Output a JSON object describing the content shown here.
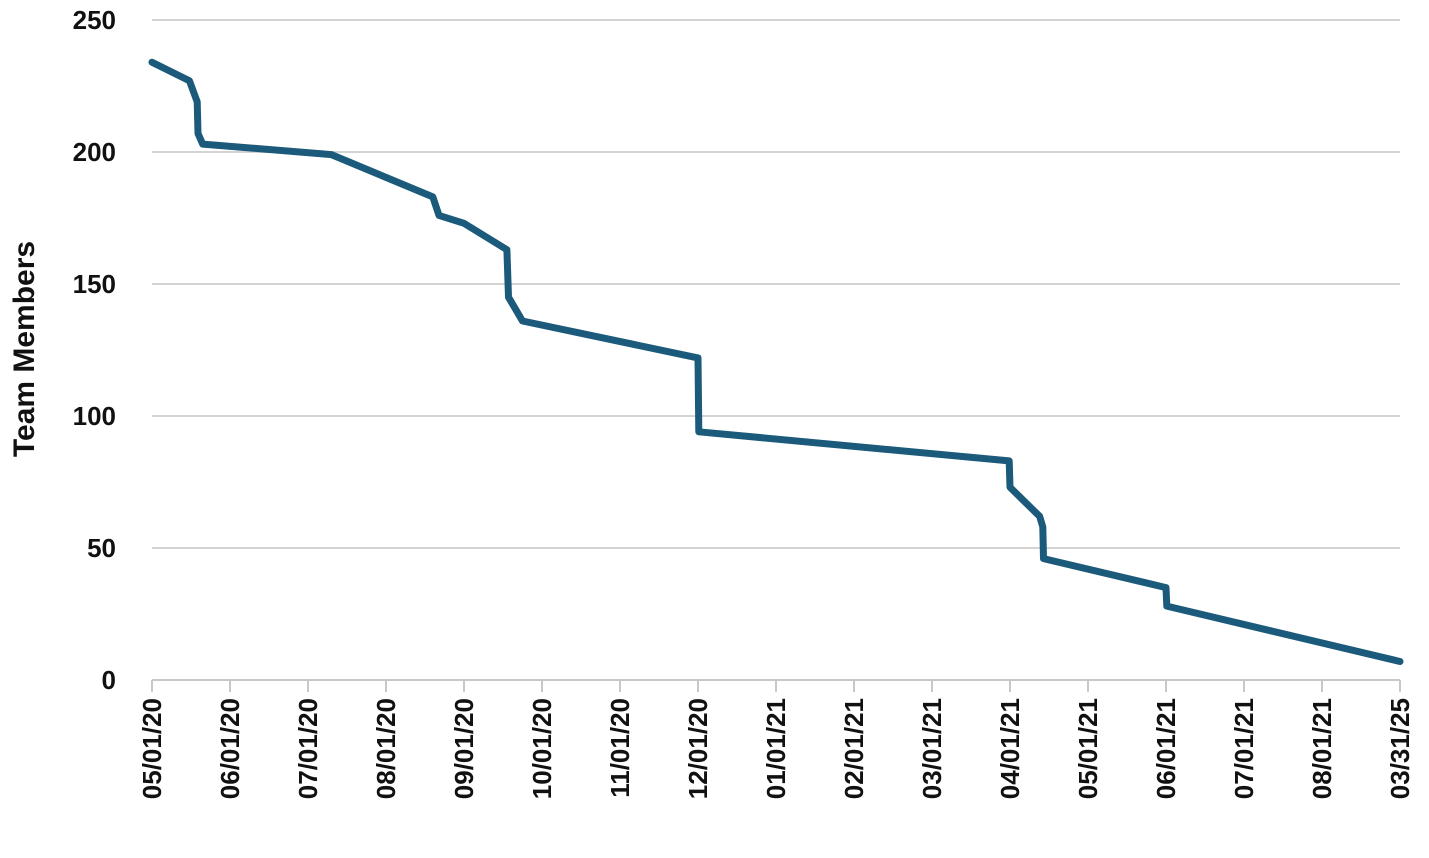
{
  "chart_data": {
    "type": "line",
    "ylabel": "Team Members",
    "xlabel": "",
    "ylim": [
      0,
      250
    ],
    "yticks": [
      0,
      50,
      100,
      150,
      200,
      250
    ],
    "grid": true,
    "x_tick_labels": [
      "05/01/20",
      "06/01/20",
      "07/01/20",
      "08/01/20",
      "09/01/20",
      "10/01/20",
      "11/01/20",
      "12/01/20",
      "01/01/21",
      "02/01/21",
      "03/01/21",
      "04/01/21",
      "05/01/21",
      "06/01/21",
      "07/01/21",
      "08/01/21",
      "03/31/25"
    ],
    "series_color": "#1b5a7a",
    "series": [
      {
        "points": [
          {
            "x": 0.0,
            "y": 234
          },
          {
            "x": 0.48,
            "y": 227
          },
          {
            "x": 0.58,
            "y": 219
          },
          {
            "x": 0.59,
            "y": 207
          },
          {
            "x": 0.65,
            "y": 203
          },
          {
            "x": 2.3,
            "y": 199
          },
          {
            "x": 3.6,
            "y": 183
          },
          {
            "x": 3.68,
            "y": 176
          },
          {
            "x": 4.0,
            "y": 173
          },
          {
            "x": 4.55,
            "y": 163
          },
          {
            "x": 4.57,
            "y": 145
          },
          {
            "x": 4.75,
            "y": 136
          },
          {
            "x": 7.0,
            "y": 122
          },
          {
            "x": 7.01,
            "y": 94
          },
          {
            "x": 10.99,
            "y": 83
          },
          {
            "x": 11.0,
            "y": 73
          },
          {
            "x": 11.38,
            "y": 62
          },
          {
            "x": 11.42,
            "y": 58
          },
          {
            "x": 11.43,
            "y": 46
          },
          {
            "x": 13.0,
            "y": 35
          },
          {
            "x": 13.01,
            "y": 28
          },
          {
            "x": 16.0,
            "y": 7
          }
        ]
      }
    ]
  }
}
